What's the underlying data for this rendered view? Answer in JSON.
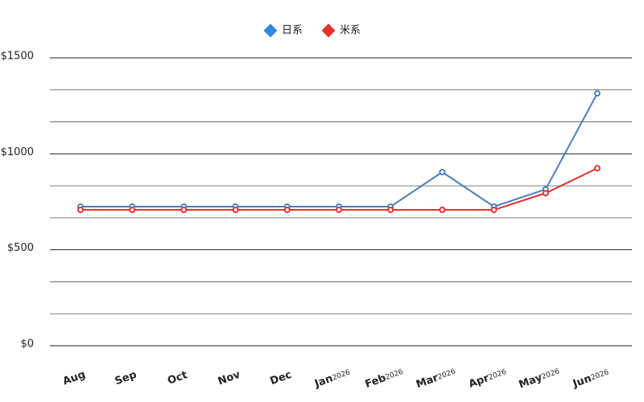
{
  "chart_data": {
    "type": "line",
    "categories": [
      "Aug",
      "Sep",
      "Oct",
      "Nov",
      "Dec",
      "Jan",
      "Feb",
      "Mar",
      "Apr",
      "May",
      "Jun"
    ],
    "category_years": [
      null,
      null,
      null,
      null,
      null,
      "2026",
      "2026",
      "2026",
      "2026",
      "2026",
      "2026"
    ],
    "series": [
      {
        "name": "日系",
        "color": "#4a7ebb",
        "legend_color": "#2f86e8",
        "values": [
          725,
          725,
          725,
          725,
          725,
          725,
          725,
          905,
          725,
          815,
          1315
        ]
      },
      {
        "name": "米系",
        "color": "#e8302a",
        "legend_color": "#e8302a",
        "values": [
          708,
          708,
          708,
          708,
          708,
          708,
          708,
          708,
          708,
          795,
          925
        ]
      }
    ],
    "ylim": [
      0,
      1500
    ],
    "yticks": [
      {
        "value": 0,
        "label": "$0"
      },
      {
        "value": 500,
        "label": "$500"
      },
      {
        "value": 1000,
        "label": "$1000"
      },
      {
        "value": 1500,
        "label": "$1500"
      }
    ],
    "grid": true,
    "legend": "top"
  }
}
